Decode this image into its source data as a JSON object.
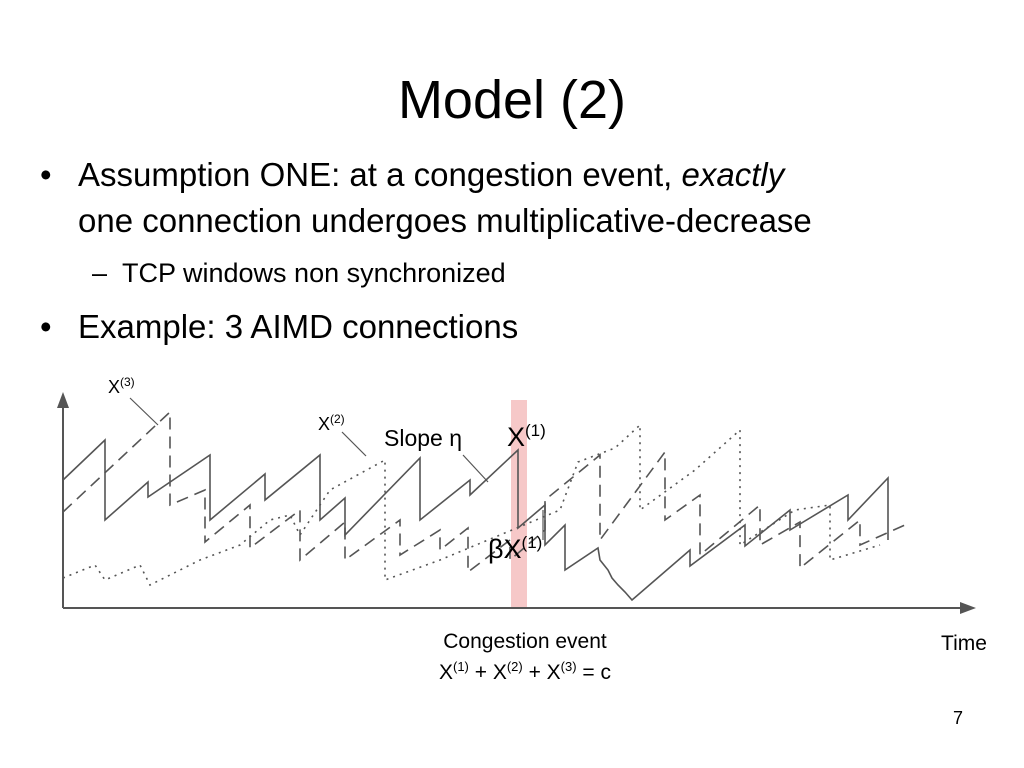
{
  "title": "Model (2)",
  "bullets": [
    {
      "text": [
        "Assumption ONE: at a congestion event,",
        "exactly",
        "one connection undergoes multiplicative-decrease"
      ],
      "subs": [
        "TCP windows non synchronized"
      ]
    },
    {
      "text": [
        "Example: 3 AIMD connections"
      ]
    }
  ],
  "diagram": {
    "x3": [
      "X",
      "(3)"
    ],
    "x2": [
      "X",
      "(2)"
    ],
    "slope": "Slope η",
    "x1": [
      "X",
      "(1)"
    ],
    "beta_x1": [
      "βX",
      "(1)"
    ],
    "event": "Congestion event",
    "equation": [
      [
        "X",
        "(1)"
      ],
      [
        "+ X",
        "(2)"
      ],
      [
        "+ X",
        "(3)"
      ],
      [
        "= c"
      ]
    ],
    "time": "Time"
  },
  "page_number": "7"
}
